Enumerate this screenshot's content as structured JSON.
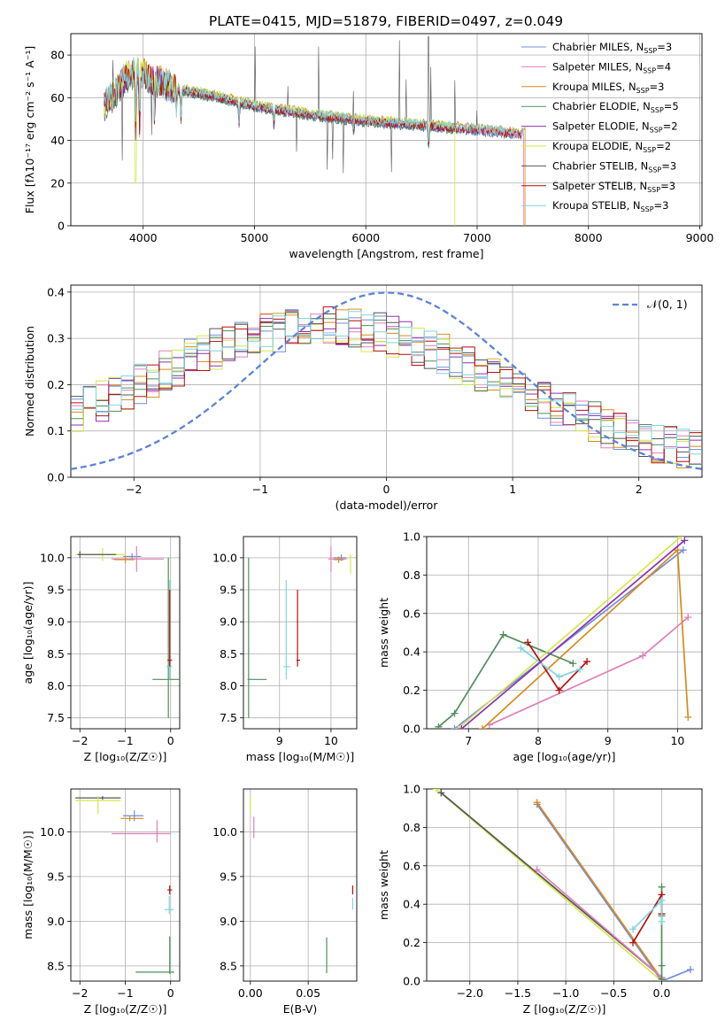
{
  "title": "PLATE=0415, MJD=51879, FIBERID=0497, z=0.049",
  "models": [
    {
      "name": "Chabrier MILES",
      "n": "3",
      "color": "#6f8fd8"
    },
    {
      "name": "Salpeter MILES",
      "n": "4",
      "color": "#e07fb8"
    },
    {
      "name": "Kroupa MILES",
      "n": "3",
      "color": "#d98a1c"
    },
    {
      "name": "Chabrier ELODIE",
      "n": "5",
      "color": "#4f8f5a"
    },
    {
      "name": "Salpeter ELODIE",
      "n": "2",
      "color": "#8d2fb3"
    },
    {
      "name": "Kroupa ELODIE",
      "n": "2",
      "color": "#d4e84a"
    },
    {
      "name": "Chabrier STELIB",
      "n": "3",
      "color": "#555555"
    },
    {
      "name": "Salpeter STELIB",
      "n": "3",
      "color": "#b50f0f"
    },
    {
      "name": "Kroupa STELIB",
      "n": "3",
      "color": "#7fd6dc"
    }
  ],
  "chart_data": [
    {
      "id": "spectrum",
      "type": "line",
      "xlabel": "wavelength [Angstrom, rest frame]",
      "ylabel": "Flux [fλ10⁻¹⁷ erg cm⁻² s⁻¹ A⁻¹]",
      "xlim": [
        3350,
        9020
      ],
      "ylim": [
        0,
        90
      ],
      "xticks": [
        4000,
        5000,
        6000,
        7000,
        8000,
        9000
      ],
      "yticks": [
        0,
        20,
        40,
        60,
        80
      ],
      "grid": true,
      "legend": "top-right",
      "continuum": [
        [
          3650,
          56
        ],
        [
          3750,
          62
        ],
        [
          3850,
          70
        ],
        [
          3950,
          72
        ],
        [
          4100,
          68
        ],
        [
          4300,
          64
        ],
        [
          4500,
          62
        ],
        [
          4700,
          60
        ],
        [
          5000,
          56
        ],
        [
          5500,
          52
        ],
        [
          6000,
          49
        ],
        [
          6500,
          47
        ],
        [
          7000,
          45
        ],
        [
          7400,
          43
        ]
      ],
      "model_ends": [
        7400,
        7420,
        7430,
        6800,
        6800,
        6800,
        7400,
        7400,
        7420
      ],
      "absorption_lines": [
        [
          3934,
          28
        ],
        [
          3969,
          24
        ],
        [
          4102,
          16
        ],
        [
          4300,
          10
        ],
        [
          4340,
          14
        ],
        [
          4861,
          10
        ],
        [
          5175,
          8
        ],
        [
          5890,
          6
        ],
        [
          6563,
          10
        ]
      ],
      "emission_lines": [
        [
          3727,
          12
        ],
        [
          4861,
          8
        ],
        [
          5007,
          30
        ],
        [
          5300,
          14
        ],
        [
          5577,
          35
        ],
        [
          5890,
          18
        ],
        [
          6300,
          40
        ],
        [
          6363,
          22
        ],
        [
          6563,
          50
        ],
        [
          6583,
          30
        ],
        [
          6800,
          25
        ],
        [
          7000,
          10
        ]
      ]
    },
    {
      "id": "residuals",
      "type": "histogram",
      "xlabel": "(data-model)/error",
      "ylabel": "Normed distribution",
      "xlim": [
        -2.5,
        2.5
      ],
      "ylim": [
        0,
        0.415
      ],
      "xticks": [
        -2,
        -1,
        0,
        1,
        2
      ],
      "yticks": [
        0.0,
        0.1,
        0.2,
        0.3,
        0.4
      ],
      "grid": true,
      "legend": "top-right",
      "gaussian_label": "𝒩(0, 1)",
      "gaussian_color": "#5b83d6",
      "bins": 50,
      "peak": 0.31,
      "center": -0.5,
      "width": 1.45
    },
    {
      "id": "age-vs-Z",
      "type": "errorbar",
      "xlabel": "Z [log₁₀(Z/Z☉)]",
      "ylabel": "age  [log₁₀(age/yr)]",
      "xlim": [
        -2.2,
        0.2
      ],
      "ylim": [
        7.33,
        10.33
      ],
      "xticks": [
        -2,
        -1,
        0
      ],
      "yticks": [
        7.5,
        8.0,
        8.5,
        9.0,
        9.5,
        10.0
      ],
      "points": [
        {
          "m": 0,
          "x": -0.85,
          "y": 10.02,
          "xerr": [
            0.2,
            0.2
          ],
          "yerr": [
            0.05,
            0.05
          ]
        },
        {
          "m": 1,
          "x": -0.75,
          "y": 9.98,
          "xerr": [
            0.55,
            0.6
          ],
          "yerr": [
            0.2,
            0.2
          ]
        },
        {
          "m": 2,
          "x": -1.0,
          "y": 9.97,
          "xerr": [
            0.25,
            0.2
          ],
          "yerr": [
            0.05,
            0.05
          ]
        },
        {
          "m": 5,
          "x": -1.5,
          "y": 10.05,
          "xerr": [
            0.6,
            0.5
          ],
          "yerr": [
            0.1,
            0.1
          ]
        },
        {
          "m": 3,
          "x": -0.05,
          "y": 8.1,
          "xerr": [
            0.35,
            0.25
          ],
          "yerr": [
            0.6,
            1.9
          ]
        },
        {
          "m": 8,
          "x": -0.02,
          "y": 8.3,
          "xerr": [
            0.08,
            0.05
          ],
          "yerr": [
            0.2,
            1.35
          ]
        },
        {
          "m": 7,
          "x": -0.02,
          "y": 8.4,
          "xerr": [
            0.05,
            0.05
          ],
          "yerr": [
            0.1,
            1.1
          ]
        },
        {
          "m": 6,
          "x": -2.0,
          "y": 10.05,
          "xerr": [
            0.05,
            0.8
          ],
          "yerr": [
            0.05,
            0.05
          ]
        }
      ]
    },
    {
      "id": "age-vs-mass",
      "type": "errorbar",
      "xlabel": "mass [log₁₀(M/M☉)]",
      "ylabel": "",
      "xlim": [
        8.3,
        10.5
      ],
      "ylim": [
        7.33,
        10.33
      ],
      "xticks": [
        9,
        10
      ],
      "yticks": [
        7.5,
        8.0,
        8.5,
        9.0,
        9.5,
        10.0
      ],
      "points": [
        {
          "m": 3,
          "x": 8.4,
          "y": 8.1,
          "xerr": [
            0.02,
            0.35
          ],
          "yerr": [
            0.6,
            1.9
          ]
        },
        {
          "m": 8,
          "x": 9.13,
          "y": 8.3,
          "xerr": [
            0.05,
            0.08
          ],
          "yerr": [
            0.2,
            1.35
          ]
        },
        {
          "m": 7,
          "x": 9.35,
          "y": 8.4,
          "xerr": [
            0.02,
            0.05
          ],
          "yerr": [
            0.1,
            1.1
          ]
        },
        {
          "m": 0,
          "x": 10.2,
          "y": 10.0,
          "xerr": [
            0.15,
            0.1
          ],
          "yerr": [
            0.05,
            0.05
          ]
        },
        {
          "m": 1,
          "x": 10.0,
          "y": 9.98,
          "xerr": [
            0.05,
            0.3
          ],
          "yerr": [
            0.2,
            0.2
          ]
        },
        {
          "m": 2,
          "x": 10.15,
          "y": 9.97,
          "xerr": [
            0.1,
            0.1
          ],
          "yerr": [
            0.05,
            0.05
          ]
        },
        {
          "m": 5,
          "x": 10.38,
          "y": 10.0,
          "xerr": [
            0.02,
            0.02
          ],
          "yerr": [
            0.25,
            0.05
          ]
        }
      ]
    },
    {
      "id": "weight-vs-age",
      "type": "line",
      "xlabel": "age  [log₁₀(age/yr)]",
      "ylabel": "mass weight",
      "xlim": [
        6.4,
        10.35
      ],
      "ylim": [
        0,
        1.0
      ],
      "xticks": [
        7,
        8,
        9,
        10
      ],
      "yticks": [
        0.0,
        0.2,
        0.4,
        0.6,
        0.8,
        1.0
      ],
      "series": [
        {
          "m": 0,
          "x": [
            6.8,
            10.08
          ],
          "y": [
            0.0,
            0.93
          ]
        },
        {
          "m": 1,
          "x": [
            7.3,
            9.5,
            10.15
          ],
          "y": [
            0.02,
            0.38,
            0.58
          ]
        },
        {
          "m": 2,
          "x": [
            7.2,
            10.0,
            10.15
          ],
          "y": [
            0.0,
            0.93,
            0.06
          ]
        },
        {
          "m": 3,
          "x": [
            6.57,
            6.8,
            7.5,
            8.5
          ],
          "y": [
            0.01,
            0.08,
            0.49,
            0.34
          ]
        },
        {
          "m": 5,
          "x": [
            6.85,
            10.05
          ],
          "y": [
            0.0,
            1.0
          ]
        },
        {
          "m": 7,
          "x": [
            7.85,
            8.3,
            8.7
          ],
          "y": [
            0.45,
            0.2,
            0.35
          ]
        },
        {
          "m": 8,
          "x": [
            7.75,
            8.3,
            8.6
          ],
          "y": [
            0.42,
            0.27,
            0.31
          ]
        },
        {
          "m": 4,
          "x": [
            6.9,
            10.1
          ],
          "y": [
            0.0,
            0.98
          ]
        }
      ]
    },
    {
      "id": "mass-vs-Z",
      "type": "errorbar",
      "xlabel": "Z [log₁₀(Z/Z☉)]",
      "ylabel": "mass [log₁₀(M/M☉)]",
      "xlim": [
        -2.2,
        0.2
      ],
      "ylim": [
        8.33,
        10.48
      ],
      "xticks": [
        -2,
        -1,
        0
      ],
      "yticks": [
        8.5,
        9.0,
        9.5,
        10.0
      ],
      "points": [
        {
          "m": 6,
          "x": -1.5,
          "y": 10.38,
          "xerr": [
            0.6,
            0.4
          ],
          "yerr": [
            0.02,
            0.02
          ]
        },
        {
          "m": 5,
          "x": -1.6,
          "y": 10.35,
          "xerr": [
            0.5,
            0.5
          ],
          "yerr": [
            0.15,
            0.05
          ]
        },
        {
          "m": 0,
          "x": -0.8,
          "y": 10.18,
          "xerr": [
            0.25,
            0.2
          ],
          "yerr": [
            0.06,
            0.06
          ]
        },
        {
          "m": 2,
          "x": -0.9,
          "y": 10.15,
          "xerr": [
            0.2,
            0.3
          ],
          "yerr": [
            0.03,
            0.03
          ]
        },
        {
          "m": 1,
          "x": -0.3,
          "y": 9.98,
          "xerr": [
            1.0,
            0.3
          ],
          "yerr": [
            0.1,
            0.15
          ]
        },
        {
          "m": 7,
          "x": -0.02,
          "y": 9.35,
          "xerr": [
            0.05,
            0.05
          ],
          "yerr": [
            0.05,
            0.05
          ]
        },
        {
          "m": 8,
          "x": -0.03,
          "y": 9.13,
          "xerr": [
            0.1,
            0.1
          ],
          "yerr": [
            0.05,
            0.15
          ]
        },
        {
          "m": 3,
          "x": -0.02,
          "y": 8.43,
          "xerr": [
            0.75,
            0.1
          ],
          "yerr": [
            0.02,
            0.4
          ]
        }
      ]
    },
    {
      "id": "mass-vs-EBV",
      "type": "errorbar",
      "xlabel": "E(B-V)",
      "ylabel": "",
      "xlim": [
        -0.006,
        0.092
      ],
      "ylim": [
        8.33,
        10.48
      ],
      "xticks": [
        0.0,
        0.05
      ],
      "xticklabels": [
        "0.00",
        "0.05"
      ],
      "yticks": [
        8.5,
        9.0,
        9.5,
        10.0
      ],
      "points": [
        {
          "m": 5,
          "x": 0.0,
          "y": 10.3,
          "xerr": [
            0,
            0
          ],
          "yerr": [
            0.1,
            0.1
          ]
        },
        {
          "m": 1,
          "x": 0.003,
          "y": 10.05,
          "xerr": [
            0,
            0
          ],
          "yerr": [
            0.12,
            0.12
          ]
        },
        {
          "m": 7,
          "x": 0.0885,
          "y": 9.35,
          "xerr": [
            0,
            0
          ],
          "yerr": [
            0.05,
            0.05
          ]
        },
        {
          "m": 8,
          "x": 0.0885,
          "y": 9.18,
          "xerr": [
            0,
            0
          ],
          "yerr": [
            0.05,
            0.08
          ]
        },
        {
          "m": 3,
          "x": 0.066,
          "y": 8.62,
          "xerr": [
            0,
            0
          ],
          "yerr": [
            0.2,
            0.2
          ]
        }
      ]
    },
    {
      "id": "weight-vs-Z",
      "type": "line",
      "xlabel": "Z [log₁₀(Z/Z☉)]",
      "ylabel": "mass weight",
      "xlim": [
        -2.45,
        0.42
      ],
      "ylim": [
        0,
        1.0
      ],
      "xticks": [
        -2.0,
        -1.5,
        -1.0,
        -0.5,
        0.0
      ],
      "yticks": [
        0.0,
        0.2,
        0.4,
        0.6,
        0.8,
        1.0
      ],
      "series": [
        {
          "m": 5,
          "x": [
            -2.35,
            0.0
          ],
          "y": [
            1.0,
            0.0
          ]
        },
        {
          "m": 6,
          "x": [
            -2.3,
            0.0
          ],
          "y": [
            0.98,
            0.02
          ]
        },
        {
          "m": 0,
          "x": [
            -1.3,
            0.0,
            0.3
          ],
          "y": [
            0.92,
            0.0,
            0.06
          ]
        },
        {
          "m": 2,
          "x": [
            -1.3,
            0.0
          ],
          "y": [
            0.93,
            0.01
          ]
        },
        {
          "m": 1,
          "x": [
            -1.3,
            0.0
          ],
          "y": [
            0.58,
            0.02
          ]
        },
        {
          "m": 3,
          "x": [
            0.0,
            0.0,
            0.0,
            0.0
          ],
          "y": [
            0.49,
            0.34,
            0.08,
            0.01
          ]
        },
        {
          "m": 7,
          "x": [
            -0.3,
            0.0,
            0.0
          ],
          "y": [
            0.2,
            0.45,
            0.35
          ]
        },
        {
          "m": 8,
          "x": [
            -0.3,
            0.0,
            0.0
          ],
          "y": [
            0.27,
            0.42,
            0.31
          ]
        }
      ]
    }
  ]
}
